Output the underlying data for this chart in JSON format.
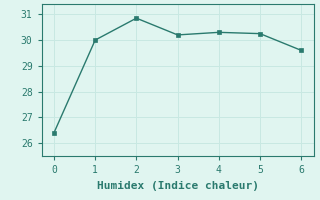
{
  "x": [
    0,
    1,
    2,
    3,
    4,
    5,
    6
  ],
  "y": [
    26.4,
    30.0,
    30.85,
    30.2,
    30.3,
    30.25,
    29.6
  ],
  "line_color": "#2a7a6e",
  "marker": "s",
  "marker_size": 2.5,
  "line_width": 1.0,
  "xlabel": "Humidex (Indice chaleur)",
  "xlim": [
    -0.3,
    6.3
  ],
  "ylim": [
    25.5,
    31.4
  ],
  "yticks": [
    26,
    27,
    28,
    29,
    30,
    31
  ],
  "xticks": [
    0,
    1,
    2,
    3,
    4,
    5,
    6
  ],
  "background_color": "#e0f5f0",
  "grid_color": "#c8e8e2",
  "xlabel_fontsize": 8,
  "tick_fontsize": 7,
  "tick_color": "#2a7a6e",
  "spine_color": "#2a7a6e"
}
